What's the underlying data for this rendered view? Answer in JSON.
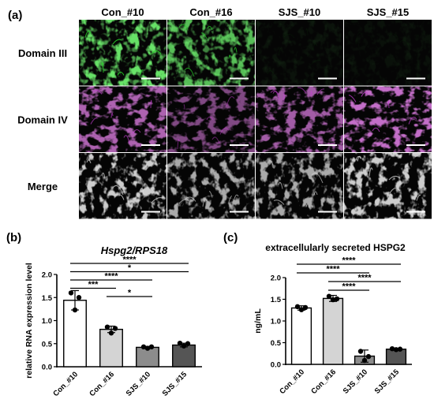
{
  "panel_a": {
    "label": "(a)",
    "columns": [
      "Con_#10",
      "Con_#16",
      "SJS_#10",
      "SJS_#15"
    ],
    "rows": [
      "Domain III",
      "Domain IV",
      "Merge"
    ],
    "colors": {
      "domain_iii": "#27d629",
      "domain_iv": "#c43bd1",
      "merge": "#d9d9d9",
      "image_bg": "#050505",
      "scale_bar": "#ffffff"
    },
    "intensity": [
      [
        0.95,
        0.8,
        0.06,
        0.05
      ],
      [
        0.75,
        0.55,
        0.7,
        0.85
      ],
      [
        0.85,
        0.7,
        0.7,
        0.85
      ]
    ]
  },
  "chart_data": [
    {
      "type": "bar",
      "label": "(b)",
      "title": "Hspg2/RPS18",
      "ylabel": "relative RNA expression level",
      "categories": [
        "Con_#10",
        "Con_#16",
        "SJS_#10",
        "SJS_#15"
      ],
      "values": [
        1.44,
        0.81,
        0.42,
        0.47
      ],
      "errors": [
        0.21,
        0.07,
        0.02,
        0.04
      ],
      "points": [
        [
          1.6,
          1.5,
          1.23
        ],
        [
          0.86,
          0.83,
          0.73
        ],
        [
          0.43,
          0.43,
          0.4
        ],
        [
          0.51,
          0.5,
          0.45
        ]
      ],
      "ylim": [
        0,
        2.0
      ],
      "yticks": [
        0.0,
        0.5,
        1.0,
        1.5,
        2.0
      ],
      "bar_colors": [
        "#ffffff",
        "#d4d4d4",
        "#8c8c8c",
        "#555555"
      ],
      "significance": [
        {
          "from": 0,
          "to": 3,
          "label": "****"
        },
        {
          "from": 0,
          "to": 3,
          "label": "*"
        },
        {
          "from": 0,
          "to": 2,
          "label": "****"
        },
        {
          "from": 0,
          "to": 1,
          "label": "***"
        },
        {
          "from": 1,
          "to": 2,
          "label": "*"
        }
      ]
    },
    {
      "type": "bar",
      "label": "(c)",
      "title": "extracellularly secreted  HSPG2",
      "ylabel": "ng/mL",
      "categories": [
        "Con_#10",
        "Con_#16",
        "SJS_#10",
        "SJS_#15"
      ],
      "values": [
        1.3,
        1.52,
        0.19,
        0.35
      ],
      "errors": [
        0.05,
        0.07,
        0.14,
        0.02
      ],
      "points": [
        [
          1.33,
          1.31,
          1.26
        ],
        [
          1.57,
          1.51,
          1.49
        ],
        [
          0.3,
          0.18,
          0.09
        ],
        [
          0.36,
          0.35,
          0.34
        ]
      ],
      "ylim": [
        0,
        2.0
      ],
      "yticks": [
        0.0,
        0.5,
        1.0,
        1.5,
        2.0
      ],
      "bar_colors": [
        "#ffffff",
        "#d4d4d4",
        "#8c8c8c",
        "#555555"
      ],
      "significance": [
        {
          "from": 0,
          "to": 3,
          "label": "****"
        },
        {
          "from": 0,
          "to": 2,
          "label": "****"
        },
        {
          "from": 1,
          "to": 3,
          "label": "****"
        },
        {
          "from": 1,
          "to": 2,
          "label": "****"
        }
      ]
    }
  ]
}
